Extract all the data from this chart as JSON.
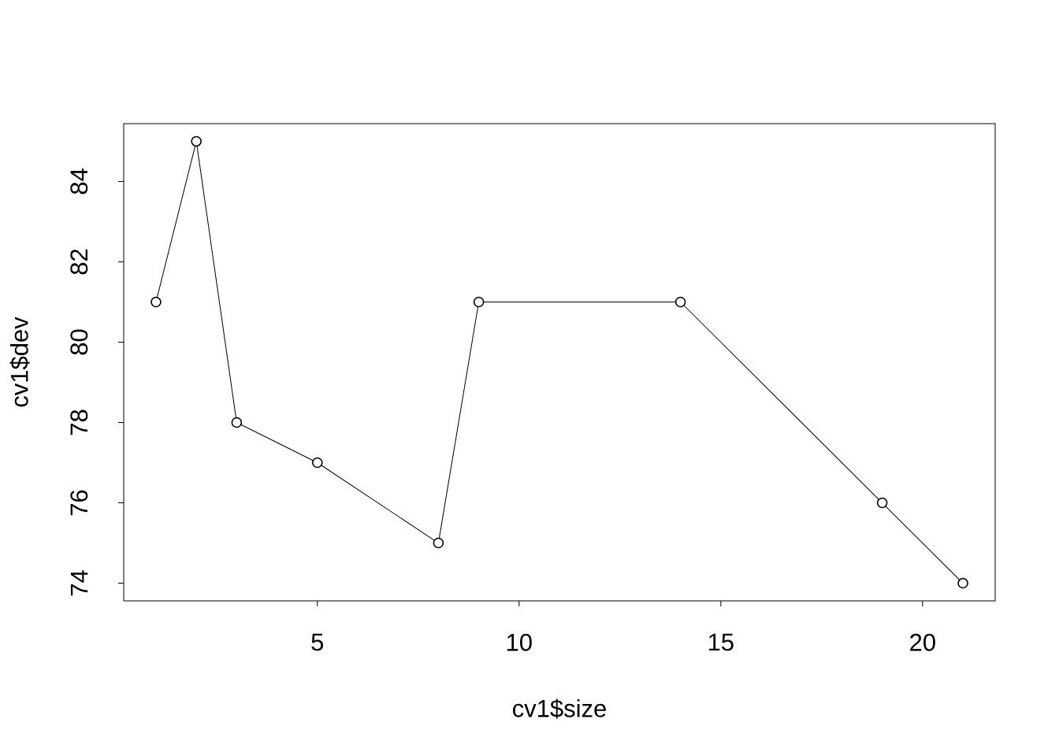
{
  "chart_data": {
    "type": "line",
    "xlabel": "cv1$size",
    "ylabel": "cv1$dev",
    "x": [
      1,
      2,
      3,
      5,
      8,
      9,
      14,
      19,
      21
    ],
    "values": [
      81,
      85,
      78,
      77,
      75,
      81,
      81,
      76,
      74
    ],
    "color": "#000000",
    "marker": "circle",
    "line_style": "solid",
    "xlim": [
      0.2,
      21.8
    ],
    "ylim": [
      73.56,
      85.44
    ],
    "xticks": [
      5,
      10,
      15,
      20
    ],
    "yticks": [
      74,
      76,
      78,
      80,
      82,
      84
    ]
  }
}
